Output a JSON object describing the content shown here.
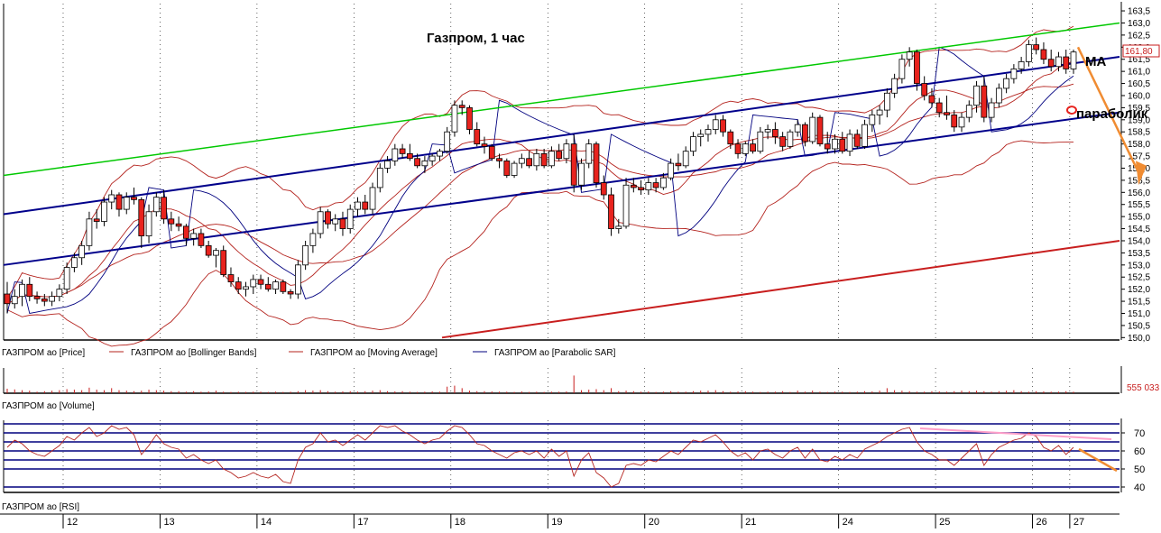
{
  "chart_data": [
    {
      "panel": "price",
      "type": "candlestick",
      "title": "Газпром, 1 час",
      "y_ticks": [
        "150,0",
        "150,5",
        "151,0",
        "151,5",
        "152,0",
        "152,5",
        "153,0",
        "153,5",
        "154,0",
        "154,5",
        "155,0",
        "155,5",
        "156,0",
        "156,5",
        "157,0",
        "157,5",
        "158,0",
        "158,5",
        "159,0",
        "159,5",
        "160,0",
        "160,5",
        "161,0",
        "161,5",
        "162,0",
        "162,5",
        "163,0",
        "163,5"
      ],
      "ylim": [
        149.9,
        163.8
      ],
      "last_price_label": "161,80",
      "annotations": [
        "MA",
        "параболик"
      ],
      "legend": [
        "ГАЗПРОМ ао [Price]",
        "ГАЗПРОМ ао [Bollinger Bands]",
        "ГАЗПРОМ ао [Moving Average]",
        "ГАЗПРОМ ао [Parabolic SAR]"
      ],
      "colors": {
        "up": "#ffffff",
        "down": "#e8231e",
        "outline": "#000000",
        "bands": "#b4231e",
        "sar": "#00007f",
        "channel": "#00008b",
        "green": "#00c800",
        "red_line": "#c81e1e",
        "arrow": "#f08c32"
      },
      "candles": [
        [
          151.8,
          152.3,
          151.0,
          151.4
        ],
        [
          151.4,
          152.0,
          151.2,
          151.7
        ],
        [
          151.7,
          152.4,
          151.3,
          152.2
        ],
        [
          152.2,
          152.5,
          151.5,
          151.7
        ],
        [
          151.7,
          151.9,
          151.4,
          151.6
        ],
        [
          151.6,
          151.8,
          151.3,
          151.5
        ],
        [
          151.5,
          151.9,
          151.3,
          151.7
        ],
        [
          151.7,
          152.2,
          151.5,
          152.0
        ],
        [
          152.0,
          153.1,
          151.8,
          152.9
        ],
        [
          152.9,
          153.5,
          152.7,
          153.3
        ],
        [
          153.3,
          154.0,
          153.0,
          153.8
        ],
        [
          153.8,
          155.2,
          153.6,
          154.9
        ],
        [
          154.9,
          155.3,
          154.5,
          154.8
        ],
        [
          154.8,
          155.8,
          154.6,
          155.6
        ],
        [
          155.6,
          156.1,
          155.3,
          155.9
        ],
        [
          155.9,
          156.0,
          155.0,
          155.3
        ],
        [
          155.3,
          156.0,
          155.1,
          155.8
        ],
        [
          155.8,
          156.2,
          155.5,
          155.7
        ],
        [
          155.7,
          155.8,
          153.7,
          154.2
        ],
        [
          154.2,
          155.5,
          153.9,
          155.2
        ],
        [
          155.2,
          156.0,
          155.0,
          155.8
        ],
        [
          155.8,
          156.1,
          154.7,
          154.9
        ],
        [
          154.9,
          155.2,
          154.4,
          154.7
        ],
        [
          154.7,
          155.0,
          154.4,
          154.6
        ],
        [
          154.6,
          154.7,
          153.8,
          154.1
        ],
        [
          154.1,
          154.5,
          153.8,
          154.3
        ],
        [
          154.3,
          154.5,
          153.7,
          153.8
        ],
        [
          153.8,
          154.0,
          153.3,
          153.4
        ],
        [
          153.4,
          153.7,
          152.9,
          153.6
        ],
        [
          153.6,
          153.8,
          152.5,
          152.6
        ],
        [
          152.6,
          152.9,
          152.1,
          152.3
        ],
        [
          152.3,
          152.5,
          151.8,
          152.0
        ],
        [
          152.0,
          152.3,
          151.7,
          152.1
        ],
        [
          152.1,
          152.6,
          151.8,
          152.4
        ],
        [
          152.4,
          152.6,
          152.0,
          152.2
        ],
        [
          152.2,
          152.5,
          151.9,
          152.0
        ],
        [
          152.0,
          152.4,
          151.8,
          152.3
        ],
        [
          152.3,
          152.4,
          151.8,
          151.9
        ],
        [
          151.9,
          152.0,
          151.6,
          151.8
        ],
        [
          151.8,
          153.2,
          151.6,
          153.0
        ],
        [
          153.0,
          154.0,
          152.8,
          153.8
        ],
        [
          153.8,
          154.5,
          153.5,
          154.3
        ],
        [
          154.3,
          155.4,
          154.1,
          155.2
        ],
        [
          155.2,
          155.3,
          154.5,
          154.7
        ],
        [
          154.7,
          155.1,
          154.4,
          154.9
        ],
        [
          154.9,
          155.2,
          154.2,
          154.5
        ],
        [
          154.5,
          155.5,
          154.3,
          155.3
        ],
        [
          155.3,
          155.8,
          155.0,
          155.6
        ],
        [
          155.6,
          155.9,
          155.1,
          155.3
        ],
        [
          155.3,
          156.4,
          155.1,
          156.2
        ],
        [
          156.2,
          157.2,
          156.0,
          157.0
        ],
        [
          157.0,
          157.5,
          156.8,
          157.3
        ],
        [
          157.3,
          158.0,
          157.1,
          157.8
        ],
        [
          157.8,
          158.0,
          157.4,
          157.6
        ],
        [
          157.6,
          158.0,
          157.3,
          157.4
        ],
        [
          157.4,
          157.6,
          157.0,
          157.1
        ],
        [
          157.1,
          157.5,
          156.8,
          157.3
        ],
        [
          157.3,
          157.6,
          157.1,
          157.5
        ],
        [
          157.5,
          157.8,
          157.3,
          157.7
        ],
        [
          157.7,
          158.7,
          157.6,
          158.5
        ],
        [
          158.5,
          159.8,
          158.3,
          159.6
        ],
        [
          159.6,
          159.8,
          159.2,
          159.5
        ],
        [
          159.5,
          159.6,
          158.4,
          158.6
        ],
        [
          158.6,
          158.9,
          157.9,
          158.0
        ],
        [
          158.0,
          158.3,
          157.6,
          157.9
        ],
        [
          157.9,
          158.0,
          157.3,
          157.4
        ],
        [
          157.4,
          157.6,
          157.0,
          157.3
        ],
        [
          157.3,
          157.4,
          156.6,
          156.7
        ],
        [
          156.7,
          157.3,
          156.6,
          157.2
        ],
        [
          157.2,
          157.6,
          157.0,
          157.4
        ],
        [
          157.4,
          157.7,
          157.0,
          157.1
        ],
        [
          157.1,
          157.8,
          156.9,
          157.6
        ],
        [
          157.6,
          157.8,
          157.0,
          157.1
        ],
        [
          157.1,
          157.9,
          157.0,
          157.7
        ],
        [
          157.7,
          158.0,
          157.3,
          157.4
        ],
        [
          157.4,
          158.2,
          157.2,
          158.0
        ],
        [
          158.0,
          158.4,
          156.0,
          156.3
        ],
        [
          156.3,
          157.4,
          156.1,
          157.2
        ],
        [
          157.2,
          158.2,
          157.0,
          158.0
        ],
        [
          158.0,
          158.1,
          156.2,
          156.4
        ],
        [
          156.4,
          156.7,
          155.7,
          155.9
        ],
        [
          155.9,
          156.2,
          154.2,
          154.5
        ],
        [
          154.5,
          154.9,
          154.3,
          154.6
        ],
        [
          154.6,
          156.6,
          154.5,
          156.3
        ],
        [
          156.3,
          156.6,
          156.0,
          156.2
        ],
        [
          156.2,
          156.5,
          155.9,
          156.1
        ],
        [
          156.1,
          156.6,
          155.9,
          156.4
        ],
        [
          156.4,
          156.6,
          156.0,
          156.2
        ],
        [
          156.2,
          156.8,
          156.1,
          156.6
        ],
        [
          156.6,
          157.4,
          156.5,
          157.2
        ],
        [
          157.2,
          157.6,
          156.9,
          157.1
        ],
        [
          157.1,
          157.9,
          157.0,
          157.7
        ],
        [
          157.7,
          158.5,
          157.5,
          158.3
        ],
        [
          158.3,
          158.6,
          157.9,
          158.4
        ],
        [
          158.4,
          158.8,
          158.1,
          158.6
        ],
        [
          158.6,
          159.2,
          158.4,
          159.0
        ],
        [
          159.0,
          159.2,
          158.3,
          158.5
        ],
        [
          158.5,
          158.6,
          157.8,
          158.0
        ],
        [
          158.0,
          158.2,
          157.4,
          157.6
        ],
        [
          157.6,
          158.1,
          157.5,
          158.0
        ],
        [
          158.0,
          158.2,
          157.6,
          157.7
        ],
        [
          157.7,
          158.7,
          157.6,
          158.5
        ],
        [
          158.5,
          158.8,
          158.2,
          158.6
        ],
        [
          158.6,
          158.9,
          158.0,
          158.3
        ],
        [
          158.3,
          158.5,
          157.7,
          157.9
        ],
        [
          157.9,
          158.6,
          157.8,
          158.5
        ],
        [
          158.5,
          159.0,
          158.3,
          158.8
        ],
        [
          158.8,
          158.9,
          157.9,
          158.1
        ],
        [
          158.1,
          159.3,
          158.0,
          159.1
        ],
        [
          159.1,
          159.2,
          157.9,
          158.0
        ],
        [
          158.0,
          158.5,
          157.6,
          157.8
        ],
        [
          157.8,
          158.4,
          157.6,
          158.2
        ],
        [
          158.2,
          158.5,
          157.6,
          157.7
        ],
        [
          157.7,
          158.6,
          157.5,
          158.4
        ],
        [
          158.4,
          158.6,
          157.8,
          157.9
        ],
        [
          157.9,
          159.0,
          157.8,
          158.8
        ],
        [
          158.8,
          159.4,
          158.5,
          159.2
        ],
        [
          159.2,
          159.6,
          158.8,
          159.4
        ],
        [
          159.4,
          160.3,
          159.1,
          160.1
        ],
        [
          160.1,
          160.9,
          159.9,
          160.7
        ],
        [
          160.7,
          161.7,
          160.5,
          161.5
        ],
        [
          161.5,
          162.0,
          161.2,
          161.8
        ],
        [
          161.8,
          161.9,
          160.2,
          160.5
        ],
        [
          160.5,
          160.8,
          159.8,
          160.0
        ],
        [
          160.0,
          160.3,
          159.5,
          159.7
        ],
        [
          159.7,
          159.9,
          159.1,
          159.3
        ],
        [
          159.3,
          160.0,
          159.0,
          159.2
        ],
        [
          159.2,
          159.4,
          158.5,
          158.7
        ],
        [
          158.7,
          159.3,
          158.5,
          159.1
        ],
        [
          159.1,
          159.8,
          158.9,
          159.6
        ],
        [
          159.6,
          160.6,
          159.3,
          160.4
        ],
        [
          160.4,
          160.8,
          158.9,
          159.1
        ],
        [
          159.1,
          159.9,
          158.9,
          159.7
        ],
        [
          159.7,
          160.5,
          159.5,
          160.3
        ],
        [
          160.3,
          160.9,
          160.1,
          160.7
        ],
        [
          160.7,
          161.3,
          160.5,
          161.1
        ],
        [
          161.1,
          161.6,
          160.9,
          161.4
        ],
        [
          161.4,
          162.3,
          161.2,
          162.1
        ],
        [
          162.1,
          162.4,
          161.7,
          161.9
        ],
        [
          161.9,
          162.2,
          161.3,
          161.5
        ],
        [
          161.5,
          161.9,
          161.0,
          161.2
        ],
        [
          161.2,
          161.8,
          161.0,
          161.6
        ],
        [
          161.6,
          161.9,
          160.9,
          161.1
        ],
        [
          161.1,
          161.9,
          160.9,
          161.8
        ]
      ]
    },
    {
      "panel": "volume",
      "type": "bar",
      "legend": "ГАЗПРОМ ао [Volume]",
      "last_value_label": "555 033",
      "values": [
        0.18,
        0.15,
        0.12,
        0.1,
        0.06,
        0.08,
        0.1,
        0.12,
        0.16,
        0.14,
        0.12,
        0.22,
        0.14,
        0.12,
        0.2,
        0.12,
        0.1,
        0.08,
        0.1,
        0.14,
        0.12,
        0.1,
        0.08,
        0.08,
        0.06,
        0.08,
        0.06,
        0.07,
        0.1,
        0.06,
        0.05,
        0.06,
        0.05,
        0.06,
        0.06,
        0.05,
        0.06,
        0.05,
        0.06,
        0.08,
        0.12,
        0.1,
        0.12,
        0.08,
        0.06,
        0.07,
        0.08,
        0.06,
        0.08,
        0.1,
        0.12,
        0.08,
        0.07,
        0.08,
        0.06,
        0.05,
        0.06,
        0.07,
        0.06,
        0.26,
        0.3,
        0.2,
        0.1,
        0.08,
        0.08,
        0.07,
        0.06,
        0.06,
        0.05,
        0.07,
        0.05,
        0.06,
        0.05,
        0.06,
        0.06,
        0.07,
        0.7,
        0.12,
        0.14,
        0.16,
        0.12,
        0.2,
        0.08,
        0.1,
        0.08,
        0.06,
        0.07,
        0.05,
        0.06,
        0.08,
        0.06,
        0.06,
        0.08,
        0.1,
        0.1,
        0.12,
        0.08,
        0.06,
        0.07,
        0.08,
        0.06,
        0.05,
        0.06,
        0.06,
        0.08,
        0.05,
        0.1,
        0.06,
        0.1,
        0.06,
        0.05,
        0.06,
        0.06,
        0.05,
        0.06,
        0.08,
        0.07,
        0.1,
        0.2,
        0.12,
        0.1,
        0.08,
        0.06,
        0.06,
        0.08,
        0.07,
        0.06,
        0.08,
        0.1,
        0.08,
        0.1,
        0.08,
        0.06,
        0.08,
        0.1,
        0.12,
        0.08,
        0.06,
        0.08,
        0.07,
        0.06,
        0.06,
        0.08,
        0.06,
        0.08
      ]
    },
    {
      "panel": "rsi",
      "type": "line",
      "legend": "ГАЗПРОМ ао [RSI]",
      "y_ticks": [
        "40",
        "50",
        "60",
        "70"
      ],
      "ylim": [
        37,
        77
      ],
      "levels": [
        40,
        50,
        55,
        60,
        65,
        70,
        75
      ],
      "x_ticks": [
        "12",
        "13",
        "14",
        "17",
        "18",
        "19",
        "20",
        "21",
        "24",
        "25",
        "26",
        "27"
      ],
      "values": [
        62,
        66,
        64,
        60,
        58,
        57,
        60,
        63,
        68,
        66,
        70,
        73,
        68,
        70,
        74,
        72,
        73,
        69,
        58,
        63,
        69,
        64,
        62,
        61,
        56,
        58,
        55,
        53,
        55,
        50,
        48,
        45,
        46,
        48,
        46,
        45,
        47,
        43,
        42,
        55,
        62,
        64,
        70,
        65,
        66,
        63,
        66,
        69,
        66,
        70,
        74,
        73,
        74,
        71,
        69,
        66,
        64,
        66,
        67,
        71,
        74,
        73,
        69,
        64,
        63,
        60,
        58,
        56,
        59,
        60,
        58,
        60,
        56,
        61,
        57,
        60,
        46,
        55,
        59,
        48,
        45,
        40,
        42,
        52,
        53,
        52,
        55,
        54,
        57,
        60,
        58,
        62,
        66,
        65,
        67,
        69,
        65,
        60,
        57,
        59,
        55,
        60,
        61,
        58,
        56,
        60,
        62,
        56,
        61,
        55,
        54,
        57,
        55,
        58,
        56,
        61,
        63,
        65,
        68,
        70,
        72,
        73,
        65,
        60,
        58,
        55,
        55,
        52,
        56,
        60,
        64,
        52,
        58,
        62,
        64,
        66,
        67,
        70,
        68,
        62,
        60,
        63,
        58,
        62
      ]
    }
  ]
}
